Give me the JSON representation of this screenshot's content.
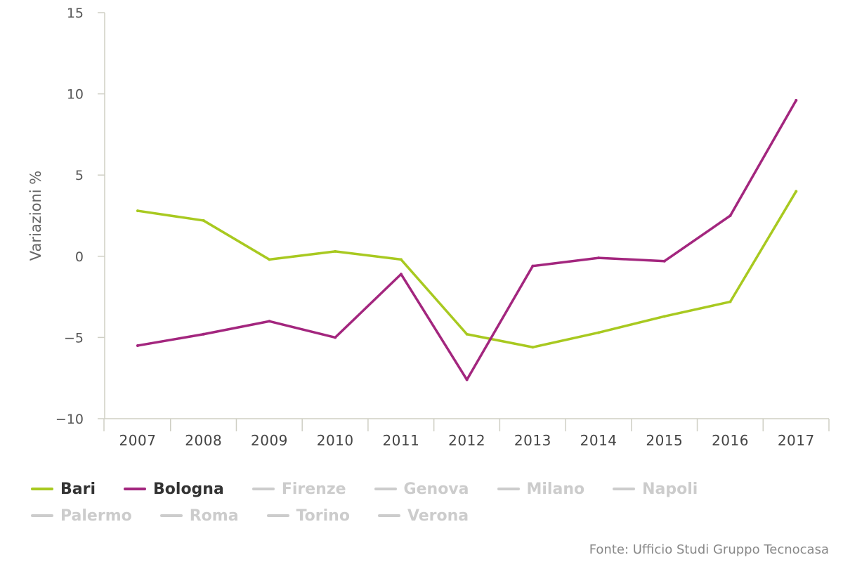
{
  "chart_data": {
    "type": "line",
    "ylabel": "Variazioni %",
    "ylim": [
      -10,
      15
    ],
    "yticks": [
      15,
      10,
      5,
      0,
      -5,
      -10
    ],
    "ytick_labels": [
      "15",
      "10",
      "5",
      "0",
      "−5",
      "−10"
    ],
    "categories": [
      "2007",
      "2008",
      "2009",
      "2010",
      "2011",
      "2012",
      "2013",
      "2014",
      "2015",
      "2016",
      "2017"
    ],
    "series": [
      {
        "name": "Bari",
        "color": "#a8c920",
        "visible": true,
        "values": [
          2.8,
          2.2,
          -0.2,
          0.3,
          -0.2,
          -4.8,
          -5.6,
          -4.7,
          -3.7,
          -2.8,
          4.0
        ]
      },
      {
        "name": "Bologna",
        "color": "#a3267e",
        "visible": true,
        "values": [
          -5.5,
          -4.8,
          -4.0,
          -5.0,
          -1.1,
          -7.6,
          -0.6,
          -0.1,
          -0.3,
          2.5,
          9.6
        ]
      }
    ],
    "legend_placement": "bottom",
    "grid": false
  },
  "legend": [
    {
      "label": "Bari",
      "color": "#a8c920",
      "active": true
    },
    {
      "label": "Bologna",
      "color": "#a3267e",
      "active": true
    },
    {
      "label": "Firenze",
      "color": "#cccccc",
      "active": false
    },
    {
      "label": "Genova",
      "color": "#cccccc",
      "active": false
    },
    {
      "label": "Milano",
      "color": "#cccccc",
      "active": false
    },
    {
      "label": "Napoli",
      "color": "#cccccc",
      "active": false
    },
    {
      "label": "Palermo",
      "color": "#cccccc",
      "active": false
    },
    {
      "label": "Roma",
      "color": "#cccccc",
      "active": false
    },
    {
      "label": "Torino",
      "color": "#cccccc",
      "active": false
    },
    {
      "label": "Verona",
      "color": "#cccccc",
      "active": false
    }
  ],
  "source": "Fonte: Ufficio Studi Gruppo Tecnocasa"
}
